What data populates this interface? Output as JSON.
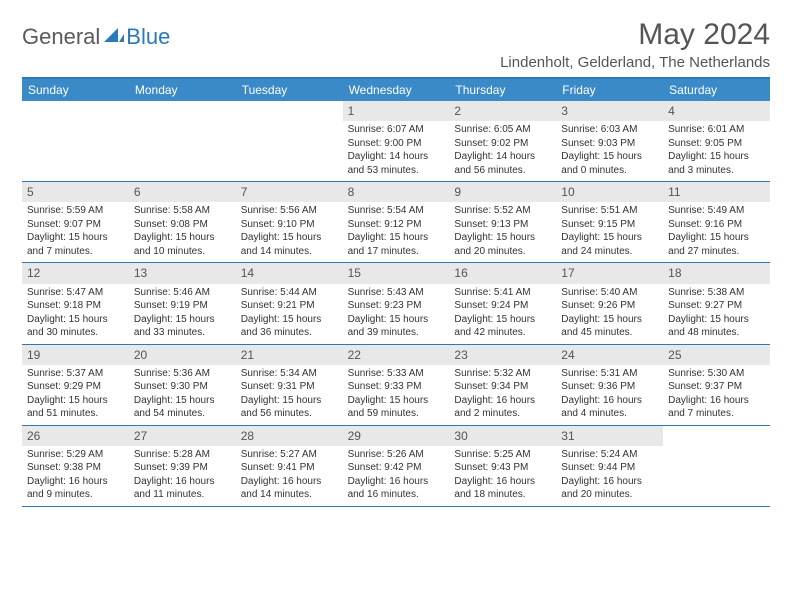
{
  "brand": {
    "part1": "General",
    "part2": "Blue"
  },
  "title": "May 2024",
  "location": "Lindenholt, Gelderland, The Netherlands",
  "colors": {
    "header_bg": "#3a8ac8",
    "header_border": "#2a7ab8",
    "daynum_bg": "#e8e8e8",
    "text": "#333333",
    "title_text": "#555555"
  },
  "day_names": [
    "Sunday",
    "Monday",
    "Tuesday",
    "Wednesday",
    "Thursday",
    "Friday",
    "Saturday"
  ],
  "weeks": [
    [
      {
        "n": "",
        "sunrise": "",
        "sunset": "",
        "daylight": ""
      },
      {
        "n": "",
        "sunrise": "",
        "sunset": "",
        "daylight": ""
      },
      {
        "n": "",
        "sunrise": "",
        "sunset": "",
        "daylight": ""
      },
      {
        "n": "1",
        "sunrise": "Sunrise: 6:07 AM",
        "sunset": "Sunset: 9:00 PM",
        "daylight": "Daylight: 14 hours and 53 minutes."
      },
      {
        "n": "2",
        "sunrise": "Sunrise: 6:05 AM",
        "sunset": "Sunset: 9:02 PM",
        "daylight": "Daylight: 14 hours and 56 minutes."
      },
      {
        "n": "3",
        "sunrise": "Sunrise: 6:03 AM",
        "sunset": "Sunset: 9:03 PM",
        "daylight": "Daylight: 15 hours and 0 minutes."
      },
      {
        "n": "4",
        "sunrise": "Sunrise: 6:01 AM",
        "sunset": "Sunset: 9:05 PM",
        "daylight": "Daylight: 15 hours and 3 minutes."
      }
    ],
    [
      {
        "n": "5",
        "sunrise": "Sunrise: 5:59 AM",
        "sunset": "Sunset: 9:07 PM",
        "daylight": "Daylight: 15 hours and 7 minutes."
      },
      {
        "n": "6",
        "sunrise": "Sunrise: 5:58 AM",
        "sunset": "Sunset: 9:08 PM",
        "daylight": "Daylight: 15 hours and 10 minutes."
      },
      {
        "n": "7",
        "sunrise": "Sunrise: 5:56 AM",
        "sunset": "Sunset: 9:10 PM",
        "daylight": "Daylight: 15 hours and 14 minutes."
      },
      {
        "n": "8",
        "sunrise": "Sunrise: 5:54 AM",
        "sunset": "Sunset: 9:12 PM",
        "daylight": "Daylight: 15 hours and 17 minutes."
      },
      {
        "n": "9",
        "sunrise": "Sunrise: 5:52 AM",
        "sunset": "Sunset: 9:13 PM",
        "daylight": "Daylight: 15 hours and 20 minutes."
      },
      {
        "n": "10",
        "sunrise": "Sunrise: 5:51 AM",
        "sunset": "Sunset: 9:15 PM",
        "daylight": "Daylight: 15 hours and 24 minutes."
      },
      {
        "n": "11",
        "sunrise": "Sunrise: 5:49 AM",
        "sunset": "Sunset: 9:16 PM",
        "daylight": "Daylight: 15 hours and 27 minutes."
      }
    ],
    [
      {
        "n": "12",
        "sunrise": "Sunrise: 5:47 AM",
        "sunset": "Sunset: 9:18 PM",
        "daylight": "Daylight: 15 hours and 30 minutes."
      },
      {
        "n": "13",
        "sunrise": "Sunrise: 5:46 AM",
        "sunset": "Sunset: 9:19 PM",
        "daylight": "Daylight: 15 hours and 33 minutes."
      },
      {
        "n": "14",
        "sunrise": "Sunrise: 5:44 AM",
        "sunset": "Sunset: 9:21 PM",
        "daylight": "Daylight: 15 hours and 36 minutes."
      },
      {
        "n": "15",
        "sunrise": "Sunrise: 5:43 AM",
        "sunset": "Sunset: 9:23 PM",
        "daylight": "Daylight: 15 hours and 39 minutes."
      },
      {
        "n": "16",
        "sunrise": "Sunrise: 5:41 AM",
        "sunset": "Sunset: 9:24 PM",
        "daylight": "Daylight: 15 hours and 42 minutes."
      },
      {
        "n": "17",
        "sunrise": "Sunrise: 5:40 AM",
        "sunset": "Sunset: 9:26 PM",
        "daylight": "Daylight: 15 hours and 45 minutes."
      },
      {
        "n": "18",
        "sunrise": "Sunrise: 5:38 AM",
        "sunset": "Sunset: 9:27 PM",
        "daylight": "Daylight: 15 hours and 48 minutes."
      }
    ],
    [
      {
        "n": "19",
        "sunrise": "Sunrise: 5:37 AM",
        "sunset": "Sunset: 9:29 PM",
        "daylight": "Daylight: 15 hours and 51 minutes."
      },
      {
        "n": "20",
        "sunrise": "Sunrise: 5:36 AM",
        "sunset": "Sunset: 9:30 PM",
        "daylight": "Daylight: 15 hours and 54 minutes."
      },
      {
        "n": "21",
        "sunrise": "Sunrise: 5:34 AM",
        "sunset": "Sunset: 9:31 PM",
        "daylight": "Daylight: 15 hours and 56 minutes."
      },
      {
        "n": "22",
        "sunrise": "Sunrise: 5:33 AM",
        "sunset": "Sunset: 9:33 PM",
        "daylight": "Daylight: 15 hours and 59 minutes."
      },
      {
        "n": "23",
        "sunrise": "Sunrise: 5:32 AM",
        "sunset": "Sunset: 9:34 PM",
        "daylight": "Daylight: 16 hours and 2 minutes."
      },
      {
        "n": "24",
        "sunrise": "Sunrise: 5:31 AM",
        "sunset": "Sunset: 9:36 PM",
        "daylight": "Daylight: 16 hours and 4 minutes."
      },
      {
        "n": "25",
        "sunrise": "Sunrise: 5:30 AM",
        "sunset": "Sunset: 9:37 PM",
        "daylight": "Daylight: 16 hours and 7 minutes."
      }
    ],
    [
      {
        "n": "26",
        "sunrise": "Sunrise: 5:29 AM",
        "sunset": "Sunset: 9:38 PM",
        "daylight": "Daylight: 16 hours and 9 minutes."
      },
      {
        "n": "27",
        "sunrise": "Sunrise: 5:28 AM",
        "sunset": "Sunset: 9:39 PM",
        "daylight": "Daylight: 16 hours and 11 minutes."
      },
      {
        "n": "28",
        "sunrise": "Sunrise: 5:27 AM",
        "sunset": "Sunset: 9:41 PM",
        "daylight": "Daylight: 16 hours and 14 minutes."
      },
      {
        "n": "29",
        "sunrise": "Sunrise: 5:26 AM",
        "sunset": "Sunset: 9:42 PM",
        "daylight": "Daylight: 16 hours and 16 minutes."
      },
      {
        "n": "30",
        "sunrise": "Sunrise: 5:25 AM",
        "sunset": "Sunset: 9:43 PM",
        "daylight": "Daylight: 16 hours and 18 minutes."
      },
      {
        "n": "31",
        "sunrise": "Sunrise: 5:24 AM",
        "sunset": "Sunset: 9:44 PM",
        "daylight": "Daylight: 16 hours and 20 minutes."
      },
      {
        "n": "",
        "sunrise": "",
        "sunset": "",
        "daylight": ""
      }
    ]
  ]
}
